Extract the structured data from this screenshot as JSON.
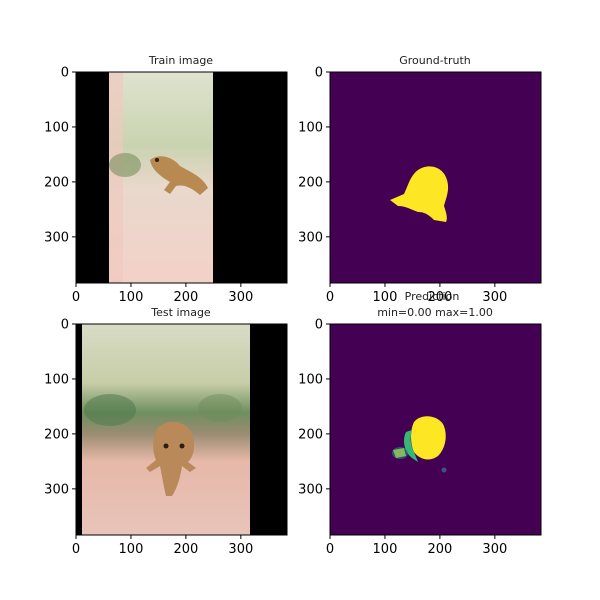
{
  "figure": {
    "panels": [
      {
        "id": "train",
        "title_lines": [
          "Train image"
        ]
      },
      {
        "id": "gt",
        "title_lines": [
          "Ground-truth"
        ]
      },
      {
        "id": "test",
        "title_lines": [
          "Test image"
        ]
      },
      {
        "id": "pred",
        "title_lines": [
          "Prediction",
          "min=0.00 max=1.00"
        ]
      }
    ]
  },
  "chart_data": [
    {
      "type": "image",
      "title": "Train image",
      "xlim": [
        0,
        384
      ],
      "ylim": [
        384,
        0
      ],
      "xticks": [
        0,
        100,
        200,
        300
      ],
      "yticks": [
        0,
        100,
        200,
        300
      ],
      "image_extent": [
        60,
        250
      ],
      "colors": {
        "background": "#000000"
      }
    },
    {
      "type": "heatmap",
      "title": "Ground-truth",
      "xlim": [
        0,
        384
      ],
      "ylim": [
        384,
        0
      ],
      "xticks": [
        0,
        100,
        200,
        300
      ],
      "yticks": [
        0,
        100,
        200,
        300
      ],
      "colors": {
        "low": "#440154",
        "high": "#fde725"
      }
    },
    {
      "type": "image",
      "title": "Test image",
      "xlim": [
        0,
        384
      ],
      "ylim": [
        384,
        0
      ],
      "xticks": [
        0,
        100,
        200,
        300
      ],
      "yticks": [
        0,
        100,
        200,
        300
      ],
      "image_extent": [
        10,
        320
      ],
      "colors": {
        "background": "#000000"
      }
    },
    {
      "type": "heatmap",
      "title": "Prediction",
      "subtitle": "min=0.00 max=1.00",
      "xlim": [
        0,
        384
      ],
      "ylim": [
        384,
        0
      ],
      "xticks": [
        0,
        100,
        200,
        300
      ],
      "yticks": [
        0,
        100,
        200,
        300
      ],
      "value_range": [
        0.0,
        1.0
      ],
      "colors": {
        "low": "#440154",
        "high": "#fde725"
      }
    }
  ]
}
